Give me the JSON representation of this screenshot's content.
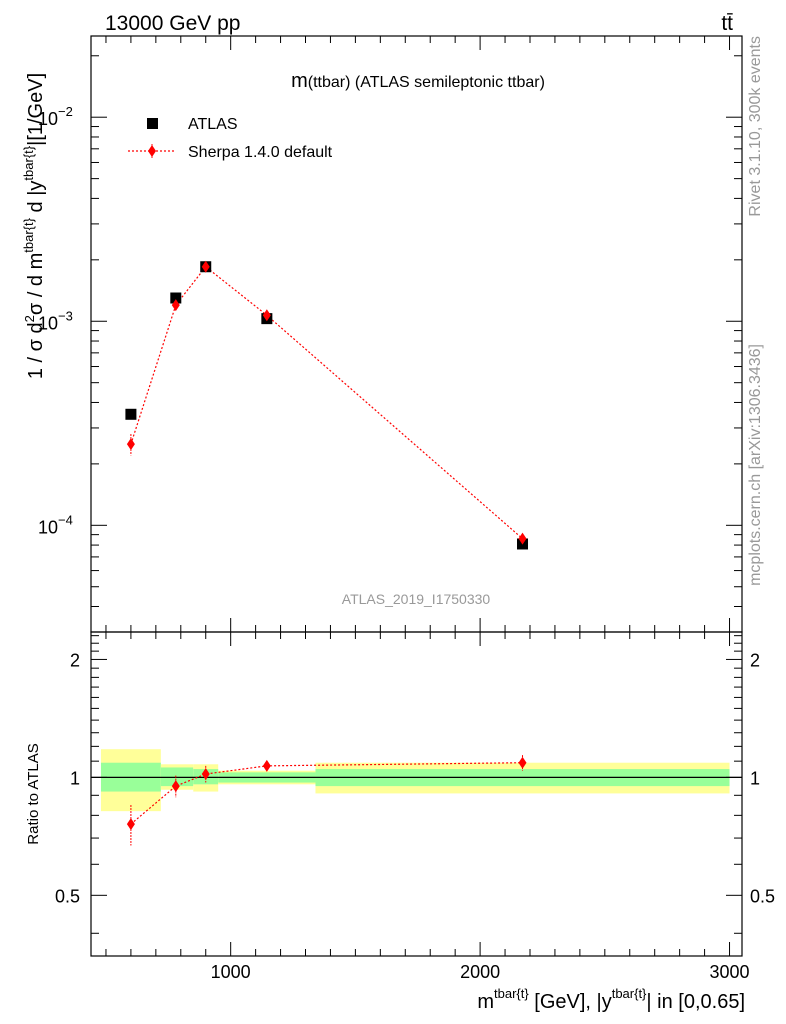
{
  "header": {
    "left": "13000 GeV pp",
    "right": "tt̄"
  },
  "side_text": {
    "top": "Rivet 3.1.10,  300k events",
    "bottom": "mcplots.cern.ch [arXiv:1306.3436]"
  },
  "colors": {
    "data": "#000000",
    "mc": "#ff0000",
    "band_inner": "#99ff99",
    "band_outer": "#ffff99",
    "watermark": "#999999"
  },
  "chart_data": [
    {
      "type": "scatter",
      "panel": "main",
      "title": "m(ttbar) (ATLAS semileptonic ttbar)",
      "title_main": "m",
      "title_rest": "(ttbar) (ATLAS semileptonic ttbar)",
      "watermark": "ATLAS_2019_I1750330",
      "ylabel": "1 / σ d²σ / d m^{tbar{t}} d |y^{tbar{t}}|[1/GeV]",
      "ylabel_parts": {
        "a": "1 / σ d",
        "b": "2",
        "c": "σ / d m",
        "d": "tbar{t}",
        "e": " d |y",
        "f": "tbar{t}",
        "g": "|[1/GeV]"
      },
      "yscale": "log",
      "ylim": [
        3e-05,
        0.025
      ],
      "xlim": [
        440,
        3050
      ],
      "x_ticks": [
        1000,
        2000,
        3000
      ],
      "y_ticks": [
        {
          "value": 0.0001,
          "base": "10",
          "exp": "−4"
        },
        {
          "value": 0.001,
          "base": "10",
          "exp": "−3"
        },
        {
          "value": 0.01,
          "base": "10",
          "exp": "−2"
        }
      ],
      "legend": {
        "position": "top-left",
        "entries": [
          {
            "label": "ATLAS",
            "marker": "square"
          },
          {
            "label": "Sherpa 1.4.0 default",
            "marker": "diamond"
          }
        ]
      },
      "series": [
        {
          "name": "ATLAS",
          "x": [
            600,
            780,
            900,
            1145,
            2170
          ],
          "y": [
            0.00035,
            0.0013,
            0.00185,
            0.00103,
            8.1e-05
          ],
          "yerr_lo": [
            1.5e-05,
            4e-05,
            5e-05,
            3e-05,
            4e-06
          ],
          "yerr_hi": [
            1.5e-05,
            4e-05,
            5e-05,
            3e-05,
            4e-06
          ]
        },
        {
          "name": "Sherpa 1.4.0 default",
          "x": [
            600,
            780,
            900,
            1145,
            2170
          ],
          "y": [
            0.00025,
            0.0012,
            0.00185,
            0.00107,
            8.6e-05
          ],
          "yerr_lo": [
            3e-05,
            6e-05,
            8e-05,
            4e-05,
            5e-06
          ],
          "yerr_hi": [
            3e-05,
            6e-05,
            8e-05,
            4e-05,
            5e-06
          ]
        }
      ]
    },
    {
      "type": "line",
      "panel": "ratio",
      "ylabel": "Ratio to ATLAS",
      "xlabel": "m^{tbar{t}} [GeV], |y^{tbar{t}}| in [0,0.65]",
      "xlabel_parts": {
        "a": "m",
        "b": "tbar{t}",
        "c": " [GeV], |y",
        "d": "tbar{t}",
        "e": "| in [0,0.65]"
      },
      "ylim": [
        0.35,
        2.35
      ],
      "y_ticks": [
        0.5,
        1,
        2
      ],
      "y_tick_labels": [
        "0.5",
        "1",
        "2"
      ],
      "x_tick_labels": [
        "1000",
        "2000",
        "3000"
      ],
      "bands": [
        {
          "x0": 480,
          "x1": 720,
          "inner": [
            0.92,
            1.09
          ],
          "outer": [
            0.82,
            1.18
          ]
        },
        {
          "x0": 720,
          "x1": 850,
          "inner": [
            0.95,
            1.06
          ],
          "outer": [
            0.93,
            1.08
          ]
        },
        {
          "x0": 850,
          "x1": 950,
          "inner": [
            0.96,
            1.05
          ],
          "outer": [
            0.92,
            1.08
          ]
        },
        {
          "x0": 950,
          "x1": 1340,
          "inner": [
            0.97,
            1.03
          ],
          "outer": [
            0.96,
            1.04
          ]
        },
        {
          "x0": 1340,
          "x1": 3000,
          "inner": [
            0.95,
            1.05
          ],
          "outer": [
            0.91,
            1.09
          ]
        }
      ],
      "reference": 1,
      "series": [
        {
          "name": "Sherpa 1.4.0 default",
          "x": [
            600,
            780,
            900,
            1145,
            2170
          ],
          "y": [
            0.76,
            0.95,
            1.02,
            1.07,
            1.09
          ],
          "yerr_lo": [
            0.09,
            0.06,
            0.05,
            0.03,
            0.05
          ],
          "yerr_hi": [
            0.09,
            0.06,
            0.05,
            0.03,
            0.05
          ]
        }
      ]
    }
  ]
}
